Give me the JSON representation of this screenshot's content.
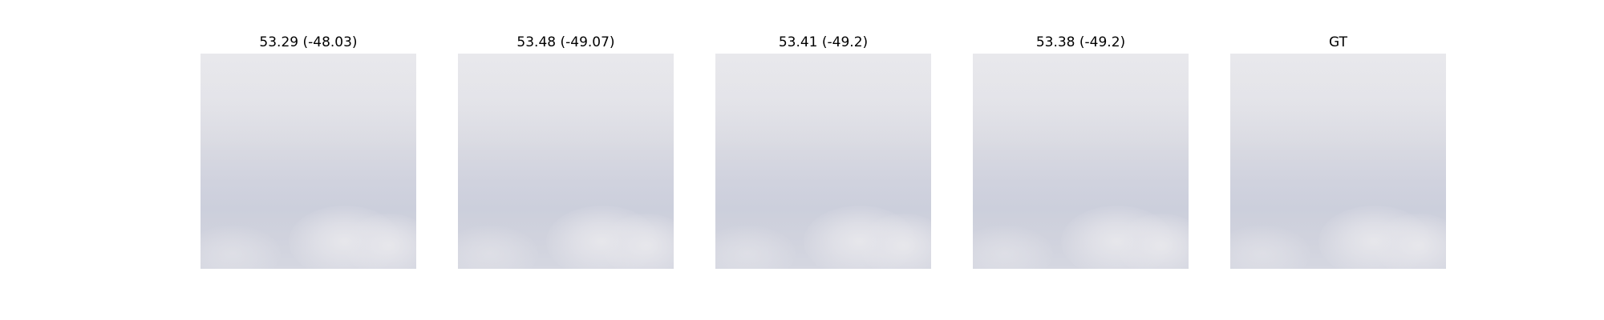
{
  "panels": [
    {
      "title": "53.29 (-48.03)"
    },
    {
      "title": "53.48 (-49.07)"
    },
    {
      "title": "53.41 (-49.2)"
    },
    {
      "title": "53.38 (-49.2)"
    },
    {
      "title": "GT"
    }
  ]
}
